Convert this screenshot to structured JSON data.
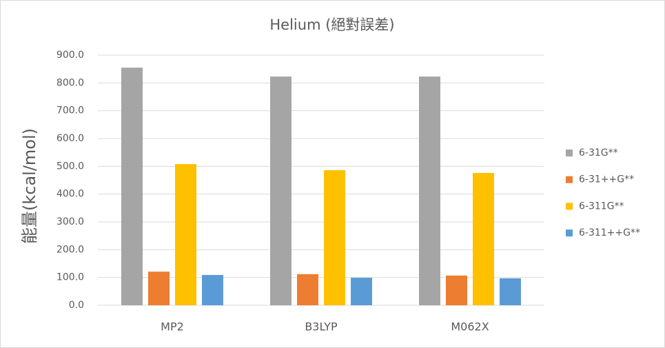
{
  "chart_data": {
    "type": "bar",
    "title": "Helium (絕對誤差)",
    "y_label": "能量(kcal/mol)",
    "categories": [
      "MP2",
      "B3LYP",
      "M062X"
    ],
    "series": [
      {
        "name": "6-31G**",
        "color": "#a5a5a5",
        "values": [
          855,
          823,
          823
        ]
      },
      {
        "name": "6-31++G**",
        "color": "#ed7d31",
        "values": [
          121,
          112,
          107
        ]
      },
      {
        "name": "6-311G**",
        "color": "#ffc000",
        "values": [
          508,
          486,
          476
        ]
      },
      {
        "name": "6-311++G**",
        "color": "#5b9bd5",
        "values": [
          109,
          99,
          97
        ]
      }
    ],
    "ylim": [
      0,
      900
    ],
    "yticks": [
      {
        "value": 0,
        "label": "0.0"
      },
      {
        "value": 100,
        "label": "100.0"
      },
      {
        "value": 200,
        "label": "200.0"
      },
      {
        "value": 300,
        "label": "300.0"
      },
      {
        "value": 400,
        "label": "400.0"
      },
      {
        "value": 500,
        "label": "500.0"
      },
      {
        "value": 600,
        "label": "600.0"
      },
      {
        "value": 700,
        "label": "700.0"
      },
      {
        "value": 800,
        "label": "800.0"
      },
      {
        "value": 900,
        "label": "900.0"
      }
    ],
    "grid": true,
    "legend": "right"
  }
}
